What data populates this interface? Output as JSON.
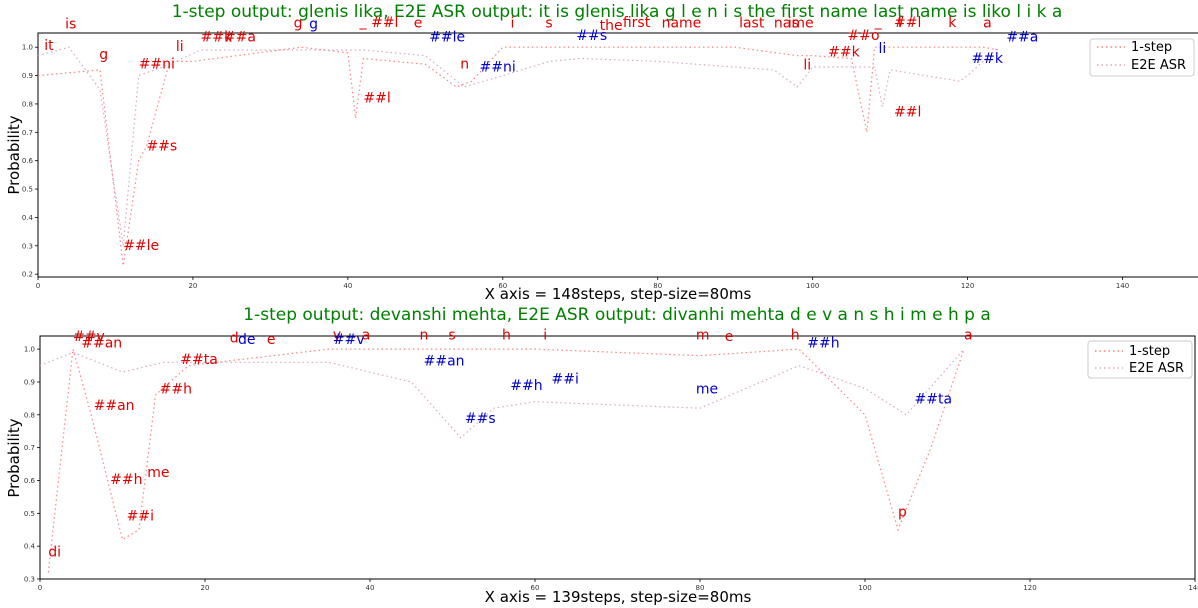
{
  "chart_data": [
    {
      "type": "line",
      "title": "1-step output: glenis lika, E2E ASR output: it is glenis lika g l e n i s the first name last name is liko l i k a",
      "xlabel": "X axis = 148steps, step-size=80ms",
      "ylabel": "Probability",
      "xlim": [
        0,
        150
      ],
      "ylim": [
        0.19,
        1.05
      ],
      "xticks": [
        0,
        20,
        40,
        60,
        80,
        100,
        120,
        140
      ],
      "yticks": [
        0.2,
        0.3,
        0.4,
        0.5,
        0.6,
        0.7,
        0.8,
        0.9,
        1.0
      ],
      "ytick_labels": [
        "0.2",
        "0.3",
        "0.4",
        "0.5",
        "0.6",
        "0.7",
        "0.8",
        "0.9",
        "1.0"
      ],
      "legend_position": "top-right",
      "series": [
        {
          "name": "1-step",
          "color": "#ff8080",
          "x": [
            0,
            8,
            11,
            13,
            14,
            17,
            20,
            34,
            40,
            41,
            42,
            50,
            54,
            56,
            60,
            70,
            80,
            90,
            98,
            100,
            105,
            107,
            108,
            110,
            120,
            122,
            124
          ],
          "y": [
            0.9,
            0.92,
            0.23,
            0.6,
            0.65,
            0.95,
            0.95,
            1.0,
            0.98,
            0.75,
            0.96,
            0.94,
            0.86,
            0.88,
            1.0,
            1.0,
            1.0,
            1.0,
            0.97,
            0.97,
            0.96,
            0.7,
            1.0,
            1.0,
            1.0,
            1.0,
            0.99
          ]
        },
        {
          "name": "E2E ASR",
          "color": "#d7a8c8",
          "x": [
            0,
            4,
            8,
            11,
            13,
            17,
            21,
            33,
            42,
            50,
            55,
            60,
            66,
            70,
            80,
            95,
            98,
            100,
            108,
            109,
            110,
            119,
            120,
            124
          ],
          "y": [
            0.97,
            1.0,
            0.85,
            0.3,
            0.9,
            0.94,
            0.99,
            0.99,
            0.99,
            0.97,
            0.86,
            0.9,
            0.95,
            0.96,
            0.95,
            0.92,
            0.86,
            0.93,
            0.93,
            0.79,
            0.92,
            0.88,
            0.9,
            1.0
          ]
        }
      ],
      "annotations": [
        {
          "text": "it",
          "x": 0.8,
          "y": 0.99,
          "color": "#e00000"
        },
        {
          "text": "is",
          "x": 3.5,
          "y": 1.065,
          "color": "#e00000"
        },
        {
          "text": "g",
          "x": 7.9,
          "y": 0.958,
          "color": "#e00000"
        },
        {
          "text": "##ni",
          "x": 13,
          "y": 0.925,
          "color": "#e00000"
        },
        {
          "text": "li",
          "x": 17.8,
          "y": 0.987,
          "color": "#e00000"
        },
        {
          "text": "##le",
          "x": 11,
          "y": 0.285,
          "color": "#e00000"
        },
        {
          "text": "##s",
          "x": 14,
          "y": 0.635,
          "color": "#e00000"
        },
        {
          "text": "##k",
          "x": 21,
          "y": 1.02,
          "color": "#e00000"
        },
        {
          "text": "##a",
          "x": 24,
          "y": 1.02,
          "color": "#e00000"
        },
        {
          "text": "g",
          "x": 33,
          "y": 1.07,
          "color": "#e00000"
        },
        {
          "text": "g",
          "x": 35,
          "y": 1.065,
          "color": "#0000cc"
        },
        {
          "text": "_",
          "x": 41.5,
          "y": 1.075,
          "color": "#e00000"
        },
        {
          "text": "##l",
          "x": 43,
          "y": 1.072,
          "color": "#e00000"
        },
        {
          "text": "e",
          "x": 48.5,
          "y": 1.07,
          "color": "#e00000"
        },
        {
          "text": "##le",
          "x": 50.5,
          "y": 1.02,
          "color": "#0000cc"
        },
        {
          "text": "##l",
          "x": 42,
          "y": 0.805,
          "color": "#e00000"
        },
        {
          "text": "n",
          "x": 54.5,
          "y": 0.925,
          "color": "#e00000"
        },
        {
          "text": "##ni",
          "x": 57,
          "y": 0.915,
          "color": "#0000cc"
        },
        {
          "text": "i",
          "x": 61,
          "y": 1.07,
          "color": "#e00000"
        },
        {
          "text": "s",
          "x": 65.5,
          "y": 1.07,
          "color": "#e00000"
        },
        {
          "text": "##s",
          "x": 69.5,
          "y": 1.025,
          "color": "#0000cc"
        },
        {
          "text": "the",
          "x": 72.5,
          "y": 1.06,
          "color": "#e00000"
        },
        {
          "text": "first",
          "x": 75.5,
          "y": 1.072,
          "color": "#e00000"
        },
        {
          "text": "name",
          "x": 80.5,
          "y": 1.07,
          "color": "#e00000"
        },
        {
          "text": "last",
          "x": 90.5,
          "y": 1.07,
          "color": "#e00000"
        },
        {
          "text": "name",
          "x": 95,
          "y": 1.07,
          "color": "#e00000"
        },
        {
          "text": "is",
          "x": 96.8,
          "y": 1.07,
          "color": "#e00000"
        },
        {
          "text": "li",
          "x": 98.8,
          "y": 0.922,
          "color": "#e00000"
        },
        {
          "text": "##k",
          "x": 102,
          "y": 0.967,
          "color": "#e00000"
        },
        {
          "text": "##o",
          "x": 104.5,
          "y": 1.025,
          "color": "#e00000"
        },
        {
          "text": "_",
          "x": 108,
          "y": 1.075,
          "color": "#e00000"
        },
        {
          "text": "##l",
          "x": 110.5,
          "y": 1.072,
          "color": "#e00000"
        },
        {
          "text": "l",
          "x": 111,
          "y": 1.072,
          "color": "#e00000"
        },
        {
          "text": "li",
          "x": 108.5,
          "y": 0.98,
          "color": "#0000cc"
        },
        {
          "text": "##l",
          "x": 110.5,
          "y": 0.755,
          "color": "#e00000"
        },
        {
          "text": "k",
          "x": 117.5,
          "y": 1.072,
          "color": "#e00000"
        },
        {
          "text": "a",
          "x": 122,
          "y": 1.07,
          "color": "#e00000"
        },
        {
          "text": "##a",
          "x": 125,
          "y": 1.02,
          "color": "#0000cc"
        },
        {
          "text": "##k",
          "x": 120.5,
          "y": 0.945,
          "color": "#0000cc"
        }
      ]
    },
    {
      "type": "line",
      "title": "1-step output: devanshi mehta, E2E ASR output: divanhi mehta d e v a n s h i m e h p a",
      "xlabel": "X axis = 139steps, step-size=80ms",
      "ylabel": "Probability",
      "xlim": [
        0,
        140
      ],
      "ylim": [
        0.3,
        1.04
      ],
      "xticks": [
        0,
        20,
        40,
        60,
        80,
        100,
        120,
        140
      ],
      "yticks": [
        0.3,
        0.4,
        0.5,
        0.6,
        0.7,
        0.8,
        0.9,
        1.0
      ],
      "ytick_labels": [
        "0.3",
        "0.4",
        "0.5",
        "0.6",
        "0.7",
        "0.8",
        "0.9",
        "1.0"
      ],
      "legend_position": "top-right",
      "series": [
        {
          "name": "1-step",
          "color": "#ff8080",
          "x": [
            1,
            4,
            6,
            10,
            12,
            14,
            18,
            35,
            45,
            50,
            51,
            55,
            60,
            80,
            92,
            100,
            104,
            108,
            112
          ],
          "y": [
            0.32,
            1.0,
            0.82,
            0.42,
            0.45,
            0.86,
            0.95,
            1.0,
            1.0,
            1.0,
            1.0,
            1.0,
            1.0,
            0.98,
            1.0,
            0.8,
            0.45,
            0.7,
            1.0
          ]
        },
        {
          "name": "E2E ASR",
          "color": "#d7a8c8",
          "x": [
            0,
            4,
            10,
            15,
            20,
            35,
            45,
            51,
            55,
            60,
            70,
            80,
            92,
            100,
            105,
            112
          ],
          "y": [
            0.95,
            0.99,
            0.93,
            0.96,
            0.96,
            0.96,
            0.9,
            0.73,
            0.82,
            0.84,
            0.83,
            0.82,
            0.95,
            0.88,
            0.8,
            1.0
          ]
        }
      ],
      "annotations": [
        {
          "text": "di",
          "x": 1,
          "y": 0.368,
          "color": "#e00000"
        },
        {
          "text": "##v",
          "x": 4,
          "y": 1.025,
          "color": "#e00000"
        },
        {
          "text": "##an",
          "x": 5,
          "y": 1.005,
          "color": "#e00000"
        },
        {
          "text": "##an",
          "x": 6.5,
          "y": 0.815,
          "color": "#e00000"
        },
        {
          "text": "##h",
          "x": 8.5,
          "y": 0.59,
          "color": "#e00000"
        },
        {
          "text": "##i",
          "x": 10.5,
          "y": 0.478,
          "color": "#e00000"
        },
        {
          "text": "me",
          "x": 13,
          "y": 0.61,
          "color": "#e00000"
        },
        {
          "text": "##h",
          "x": 14.5,
          "y": 0.865,
          "color": "#e00000"
        },
        {
          "text": "##ta",
          "x": 17,
          "y": 0.955,
          "color": "#e00000"
        },
        {
          "text": "d",
          "x": 23,
          "y": 1.02,
          "color": "#e00000"
        },
        {
          "text": "de",
          "x": 24,
          "y": 1.015,
          "color": "#0000cc"
        },
        {
          "text": "e",
          "x": 27.5,
          "y": 1.015,
          "color": "#e00000"
        },
        {
          "text": "v",
          "x": 35.5,
          "y": 1.03,
          "color": "#e00000"
        },
        {
          "text": "##v",
          "x": 35.5,
          "y": 1.015,
          "color": "#0000cc"
        },
        {
          "text": "a",
          "x": 39,
          "y": 1.03,
          "color": "#e00000"
        },
        {
          "text": "n",
          "x": 46,
          "y": 1.03,
          "color": "#e00000"
        },
        {
          "text": "s",
          "x": 49.5,
          "y": 1.03,
          "color": "#e00000"
        },
        {
          "text": "##an",
          "x": 46.5,
          "y": 0.95,
          "color": "#0000cc"
        },
        {
          "text": "##s",
          "x": 51.5,
          "y": 0.775,
          "color": "#0000cc"
        },
        {
          "text": "h",
          "x": 56,
          "y": 1.03,
          "color": "#e00000"
        },
        {
          "text": "##h",
          "x": 57,
          "y": 0.875,
          "color": "#0000cc"
        },
        {
          "text": "i",
          "x": 61,
          "y": 1.03,
          "color": "#e00000"
        },
        {
          "text": "##i",
          "x": 62,
          "y": 0.895,
          "color": "#0000cc"
        },
        {
          "text": "m",
          "x": 79.5,
          "y": 1.03,
          "color": "#e00000"
        },
        {
          "text": "e",
          "x": 83,
          "y": 1.025,
          "color": "#e00000"
        },
        {
          "text": "me",
          "x": 79.5,
          "y": 0.865,
          "color": "#0000cc"
        },
        {
          "text": "h",
          "x": 91,
          "y": 1.03,
          "color": "#e00000"
        },
        {
          "text": "##h",
          "x": 93,
          "y": 1.005,
          "color": "#0000cc"
        },
        {
          "text": "##ta",
          "x": 106,
          "y": 0.835,
          "color": "#0000cc"
        },
        {
          "text": "p",
          "x": 104,
          "y": 0.49,
          "color": "#e00000"
        },
        {
          "text": "a",
          "x": 112,
          "y": 1.03,
          "color": "#e00000"
        }
      ]
    }
  ]
}
